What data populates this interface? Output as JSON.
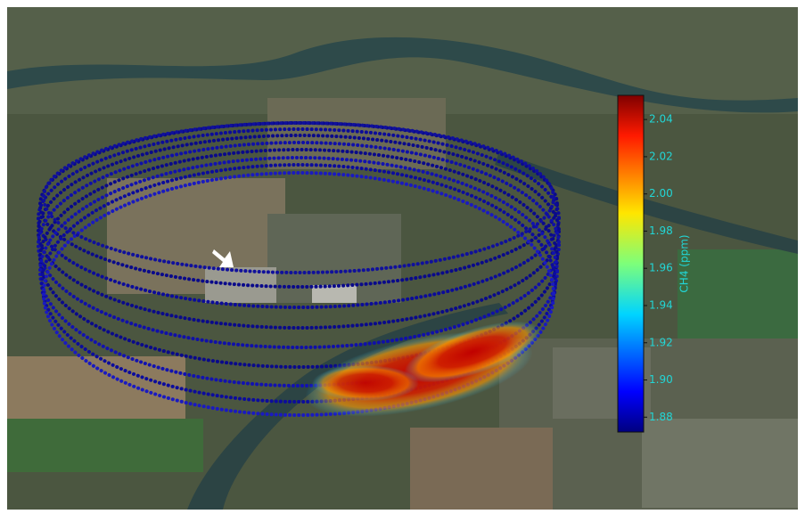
{
  "colorbar": {
    "label": "CH4 (ppm)",
    "lim": [
      1.872,
      2.053
    ],
    "ticks": [
      1.88,
      {
        "value": 1.9,
        "label": "1.90"
      },
      1.92,
      1.94,
      1.96,
      1.98,
      {
        "value": 2.0,
        "label": "2.00"
      },
      2.02,
      2.04
    ]
  }
}
